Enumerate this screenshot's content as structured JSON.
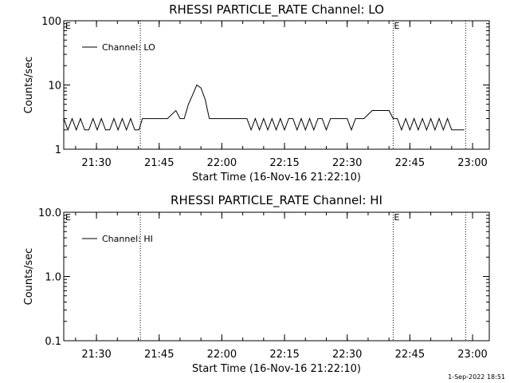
{
  "page": {
    "footer_stamp": "1-Sep-2022 18:51"
  },
  "chart_data": [
    {
      "type": "line",
      "title": "RHESSI PARTICLE_RATE Channel: LO",
      "xlabel": "Start Time (16-Nov-16 21:22:10)",
      "ylabel": "Counts/sec",
      "yscale": "log",
      "ylim": [
        1,
        100
      ],
      "xlim": [
        "21:22:10",
        "23:04:00"
      ],
      "x_ticks": [
        "21:30",
        "21:45",
        "22:00",
        "22:15",
        "22:30",
        "22:45",
        "23:00"
      ],
      "y_ticks": [
        "1",
        "10",
        "100"
      ],
      "grid": false,
      "legend": {
        "position": "top-left",
        "entries": [
          "Channel: LO"
        ]
      },
      "vlines": [
        {
          "time": "21:40:30",
          "label": ""
        },
        {
          "time": "22:41:00",
          "label": "E"
        },
        {
          "time": "22:58:20",
          "label": ""
        }
      ],
      "corner_flag": "E",
      "series": [
        {
          "name": "Channel: LO",
          "color": "#000000",
          "x": [
            "21:22:10",
            "21:23:10",
            "21:24:10",
            "21:25:10",
            "21:26:10",
            "21:27:10",
            "21:28:10",
            "21:29:10",
            "21:30:10",
            "21:31:10",
            "21:32:10",
            "21:33:10",
            "21:34:10",
            "21:35:10",
            "21:36:10",
            "21:37:10",
            "21:38:10",
            "21:39:10",
            "21:40:10",
            "21:41:00",
            "21:43:00",
            "21:45:00",
            "21:47:00",
            "21:49:00",
            "21:50:00",
            "21:51:00",
            "21:52:00",
            "21:53:00",
            "21:54:00",
            "21:55:00",
            "21:56:00",
            "21:57:00",
            "21:58:00",
            "21:59:00",
            "22:00:00",
            "22:02:00",
            "22:04:00",
            "22:06:00",
            "22:07:00",
            "22:08:00",
            "22:09:00",
            "22:10:00",
            "22:11:00",
            "22:12:00",
            "22:13:00",
            "22:14:00",
            "22:15:00",
            "22:16:00",
            "22:17:00",
            "22:18:00",
            "22:19:00",
            "22:20:00",
            "22:21:00",
            "22:22:00",
            "22:23:00",
            "22:24:00",
            "22:25:00",
            "22:26:00",
            "22:27:00",
            "22:28:00",
            "22:29:00",
            "22:30:00",
            "22:31:00",
            "22:32:00",
            "22:34:00",
            "22:36:00",
            "22:38:00",
            "22:40:00",
            "22:41:00",
            "22:42:00",
            "22:43:00",
            "22:44:00",
            "22:45:00",
            "22:46:00",
            "22:47:00",
            "22:48:00",
            "22:49:00",
            "22:50:00",
            "22:51:00",
            "22:52:00",
            "22:53:00",
            "22:54:00",
            "22:55:00",
            "22:56:00",
            "22:58:00"
          ],
          "values": [
            3,
            2,
            3,
            2,
            3,
            2,
            2,
            3,
            2,
            3,
            2,
            2,
            3,
            2,
            3,
            2,
            3,
            2,
            2,
            3,
            3,
            3,
            3,
            4,
            3,
            3,
            5,
            7,
            10,
            9,
            6,
            3,
            3,
            3,
            3,
            3,
            3,
            3,
            2,
            3,
            2,
            3,
            2,
            3,
            2,
            3,
            2,
            3,
            3,
            2,
            3,
            2,
            3,
            2,
            3,
            3,
            2,
            3,
            3,
            3,
            3,
            3,
            2,
            3,
            3,
            4,
            4,
            4,
            3,
            3,
            2,
            3,
            2,
            3,
            2,
            3,
            2,
            3,
            2,
            3,
            2,
            3,
            2,
            2,
            2
          ]
        }
      ]
    },
    {
      "type": "line",
      "title": "RHESSI PARTICLE_RATE Channel: HI",
      "xlabel": "Start Time (16-Nov-16 21:22:10)",
      "ylabel": "Counts/sec",
      "yscale": "log",
      "ylim": [
        0.1,
        10
      ],
      "xlim": [
        "21:22:10",
        "23:04:00"
      ],
      "x_ticks": [
        "21:30",
        "21:45",
        "22:00",
        "22:15",
        "22:30",
        "22:45",
        "23:00"
      ],
      "y_ticks": [
        "0.1",
        "1.0",
        "10.0"
      ],
      "grid": false,
      "legend": {
        "position": "top-left",
        "entries": [
          "Channel: HI"
        ]
      },
      "vlines": [
        {
          "time": "21:40:30",
          "label": ""
        },
        {
          "time": "22:41:00",
          "label": "E"
        },
        {
          "time": "22:58:20",
          "label": ""
        }
      ],
      "corner_flag": "E",
      "series": [
        {
          "name": "Channel: HI",
          "color": "#000000",
          "x": [],
          "values": []
        }
      ]
    }
  ]
}
